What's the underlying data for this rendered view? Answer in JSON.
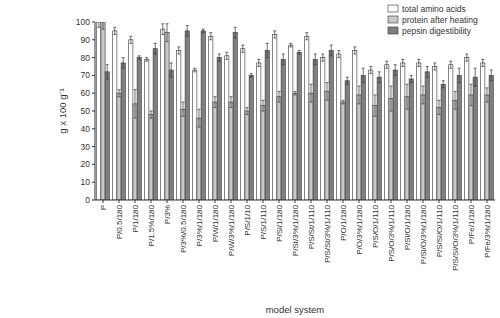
{
  "chart_data": {
    "type": "bar",
    "x_label": "model system",
    "y_label": "g x 100 g⁻¹",
    "categories": [
      "P",
      "P/0.5/180",
      "P/1/180",
      "P/1.5%/180",
      "P/3%",
      "P/3%/0.5/180",
      "P/3%/1/180",
      "P/W/1/180",
      "P/W/3%/1/180",
      "P/S/1/10",
      "P/S/1/110",
      "P/Sl/1/180",
      "P/St/3%/1/180",
      "P/S/St/1/110",
      "P/S/St/3%/1/110",
      "P/O/1/180",
      "P/O/3%/1/180",
      "P/S/O/1/110",
      "P/S/O/3%/1/110",
      "P/Sl/O/1/180",
      "P/Sl/O/3%/1/180",
      "P/S/Sl/O/1/110",
      "P/S/Sl/O/3%/1/110",
      "P/Fe/1/180",
      "P/Fe/3%/1/180"
    ],
    "series": [
      {
        "name": "total amino acids",
        "color": "#ffffff",
        "values": [
          100,
          95,
          90,
          79,
          96,
          84,
          73,
          92,
          81,
          85,
          77,
          93,
          87,
          92,
          80,
          82,
          84,
          73,
          76,
          77,
          77,
          75,
          76,
          80,
          77
        ],
        "errors": [
          3,
          2,
          2,
          1,
          3,
          2,
          1,
          2,
          2,
          2,
          2,
          2,
          1,
          2,
          2,
          2,
          2,
          2,
          2,
          2,
          2,
          2,
          2,
          2,
          2
        ]
      },
      {
        "name": "protein after heating",
        "color": "#c8c8c8",
        "values": [
          100,
          60,
          54,
          48,
          94,
          51,
          46,
          55,
          55,
          50,
          53,
          58,
          60,
          60,
          61,
          55,
          59,
          53,
          57,
          58,
          59,
          52,
          56,
          59,
          59
        ],
        "errors": [
          4,
          2,
          8,
          2,
          5,
          4,
          5,
          3,
          3,
          2,
          3,
          3,
          1,
          5,
          5,
          1,
          5,
          6,
          7,
          7,
          5,
          4,
          5,
          6,
          4
        ]
      },
      {
        "name": "pepsin digestibility",
        "color": "#7f7f7f",
        "values": [
          72,
          77,
          80,
          85,
          73,
          95,
          95,
          80,
          94,
          70,
          84,
          79,
          83,
          79,
          84,
          67,
          70,
          69,
          73,
          68,
          72,
          65,
          70,
          69,
          70
        ],
        "errors": [
          4,
          3,
          1,
          3,
          4,
          3,
          1,
          2,
          3,
          1,
          4,
          3,
          1,
          3,
          3,
          2,
          4,
          3,
          3,
          2,
          3,
          2,
          4,
          5,
          3
        ]
      }
    ],
    "ylim": [
      0,
      100
    ],
    "yticks": [
      0,
      10,
      20,
      30,
      40,
      50,
      60,
      70,
      80,
      90,
      100
    ],
    "grid": false,
    "legend": "top-right"
  }
}
